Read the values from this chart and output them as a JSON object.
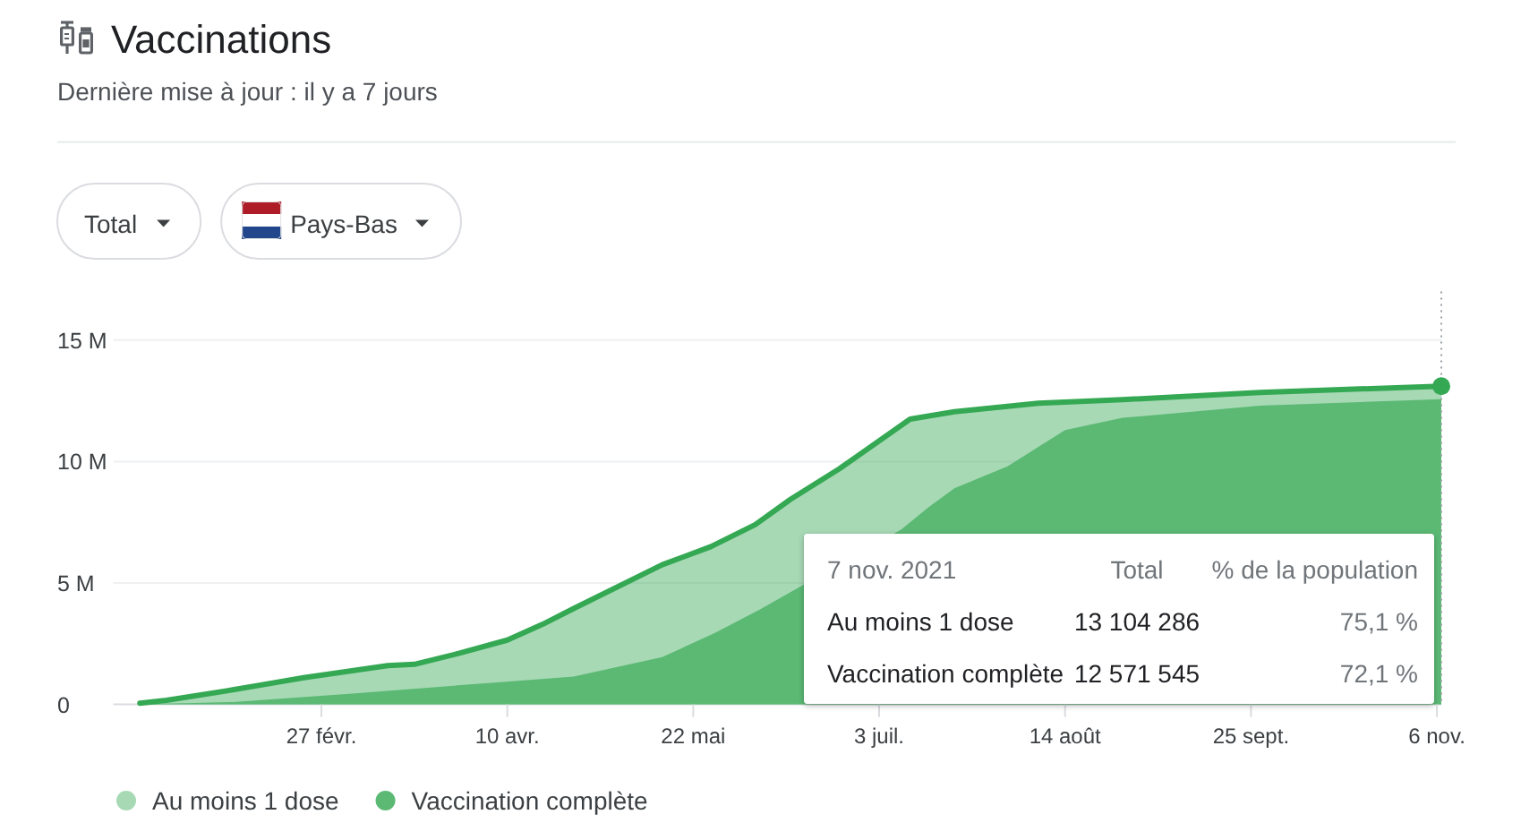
{
  "chart_data": {
    "type": "area",
    "title": "Vaccinations",
    "subtitle": "Dernière mise à jour : il y a 7 jours",
    "xlim": [
      "2021-01-11",
      "2021-11-07"
    ],
    "xticks": [
      {
        "value": "2021-02-27",
        "label": "27 févr."
      },
      {
        "value": "2021-04-10",
        "label": "10 avr."
      },
      {
        "value": "2021-05-22",
        "label": "22 mai"
      },
      {
        "value": "2021-07-03",
        "label": "3 juil."
      },
      {
        "value": "2021-08-14",
        "label": "14 août"
      },
      {
        "value": "2021-09-25",
        "label": "25 sept."
      },
      {
        "value": "2021-11-06",
        "label": "6 nov."
      }
    ],
    "ylim": [
      0,
      17000000
    ],
    "yticks": [
      0,
      {
        "value": 5000000,
        "label": "5 M"
      },
      {
        "value": 10000000,
        "label": "10 M"
      },
      {
        "value": 15000000,
        "label": "15 M"
      }
    ],
    "grid": "y",
    "legend": "bottom left",
    "series": [
      {
        "name": "Au moins 1 dose",
        "color": "#34a853",
        "x": [
          "2021-01-17",
          "2021-01-23",
          "2021-02-07",
          "2021-02-23",
          "2021-03-14",
          "2021-03-20",
          "2021-03-30",
          "2021-04-10",
          "2021-04-18",
          "2021-04-25",
          "2021-05-15",
          "2021-05-26",
          "2021-06-05",
          "2021-06-13",
          "2021-06-24",
          "2021-07-10",
          "2021-07-20",
          "2021-08-08",
          "2021-08-27",
          "2021-09-27",
          "2021-11-07"
        ],
        "values": [
          50000,
          170000,
          600000,
          1100000,
          1600000,
          1650000,
          2100000,
          2650000,
          3300000,
          3950000,
          5750000,
          6500000,
          7400000,
          8450000,
          9700000,
          11750000,
          12050000,
          12400000,
          12550000,
          12850000,
          13104286
        ]
      },
      {
        "name": "Vaccination complète",
        "color": "#5bb974",
        "x": [
          "2021-01-17",
          "2021-02-07",
          "2021-03-06",
          "2021-04-25",
          "2021-05-15",
          "2021-05-27",
          "2021-06-06",
          "2021-07-08",
          "2021-07-14",
          "2021-07-20",
          "2021-08-01",
          "2021-08-14",
          "2021-08-27",
          "2021-09-27",
          "2021-11-07"
        ],
        "values": [
          0,
          100000,
          450000,
          1150000,
          1950000,
          2950000,
          3900000,
          7200000,
          8100000,
          8900000,
          9800000,
          11300000,
          11800000,
          12300000,
          12571545
        ]
      },
      {
        "type": "scatter",
        "color": "#34a853",
        "marker": "circle",
        "x": [
          "2021-11-07"
        ],
        "values": [
          13104286
        ]
      }
    ],
    "ref_lines": [
      {
        "axis": "x",
        "value": "2021-11-07",
        "color": "#9aa0a6",
        "line_style": "dotted"
      }
    ],
    "annotations": [
      "Total",
      "Pays-Bas",
      "7 nov. 2021",
      "Total",
      "% de la population",
      "Au moins 1 dose",
      "13 104 286",
      "75,1 %",
      "Vaccination complète",
      "12 571 545",
      "72,1 %"
    ]
  }
}
